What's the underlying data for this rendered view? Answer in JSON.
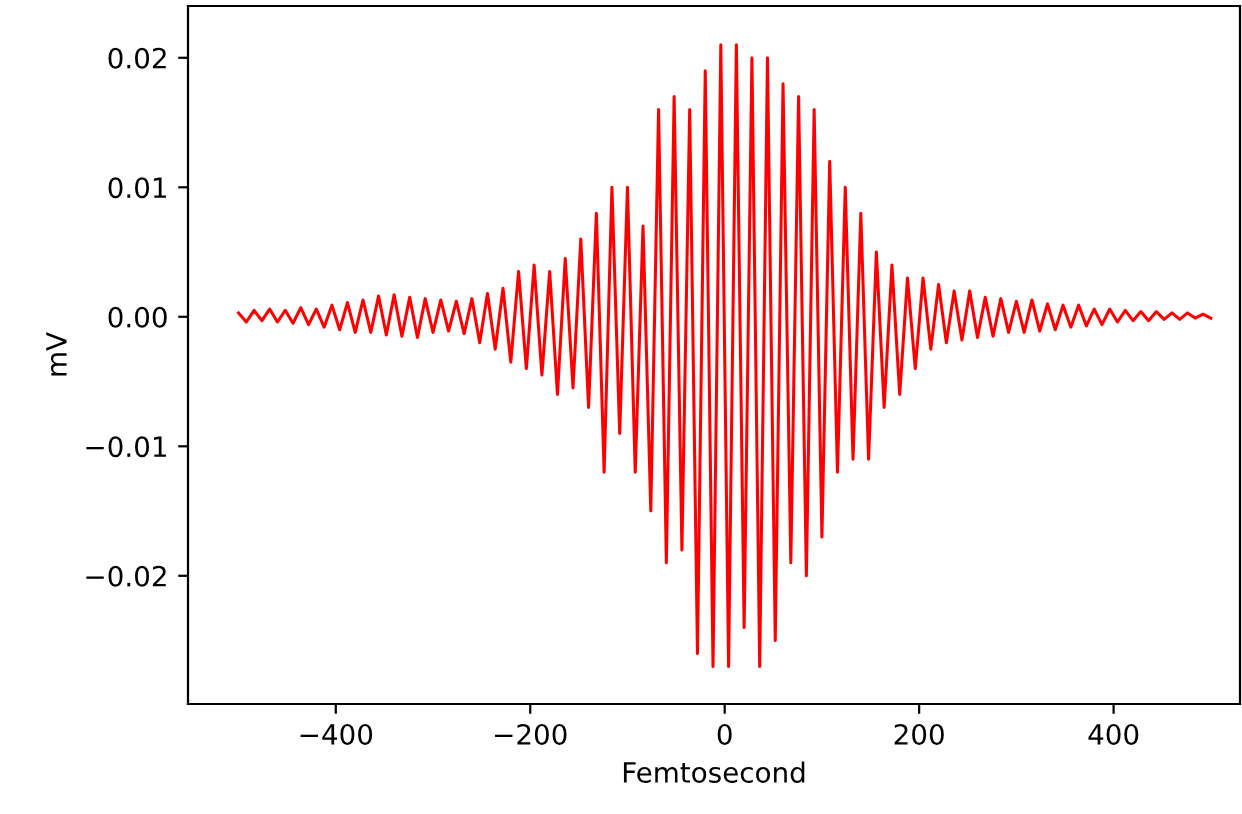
{
  "chart_data": {
    "type": "line",
    "xlabel": "Femtosecond",
    "ylabel": "mV",
    "xlim": [
      -552,
      530
    ],
    "ylim": [
      -0.0299,
      0.024
    ],
    "xticks": [
      {
        "value": -400,
        "label": "−400"
      },
      {
        "value": -200,
        "label": "−200"
      },
      0,
      200,
      400
    ],
    "yticks": [
      {
        "value": -0.02,
        "label": "−0.02"
      },
      {
        "value": -0.01,
        "label": "−0.01"
      },
      {
        "value": 0,
        "label": "0.00"
      },
      {
        "value": 0.01,
        "label": "0.01"
      },
      {
        "value": 0.02,
        "label": "0.02"
      }
    ],
    "line_style": "solid",
    "series": [
      {
        "color": "#ff0000",
        "x": [
          -500,
          -492,
          -484,
          -476,
          -468,
          -460,
          -452,
          -444,
          -436,
          -428,
          -420,
          -412,
          -404,
          -396,
          -388,
          -380,
          -372,
          -364,
          -356,
          -348,
          -340,
          -332,
          -324,
          -316,
          -308,
          -300,
          -292,
          -284,
          -276,
          -268,
          -260,
          -252,
          -244,
          -236,
          -228,
          -220,
          -212,
          -204,
          -196,
          -188,
          -180,
          -172,
          -164,
          -156,
          -148,
          -140,
          -132,
          -124,
          -116,
          -108,
          -100,
          -92,
          -84,
          -76,
          -68,
          -60,
          -52,
          -44,
          -36,
          -28,
          -20,
          -12,
          -4,
          4,
          12,
          20,
          28,
          36,
          44,
          52,
          60,
          68,
          76,
          84,
          92,
          100,
          108,
          116,
          124,
          132,
          140,
          148,
          156,
          164,
          172,
          180,
          188,
          196,
          204,
          212,
          220,
          228,
          236,
          244,
          252,
          260,
          268,
          276,
          284,
          292,
          300,
          308,
          316,
          324,
          332,
          340,
          348,
          356,
          364,
          372,
          380,
          388,
          396,
          404,
          412,
          420,
          428,
          436,
          444,
          452,
          460,
          468,
          476,
          484,
          492,
          500
        ],
        "values": [
          0.0003,
          -0.0004,
          0.0005,
          -0.0003,
          0.0006,
          -0.0004,
          0.0005,
          -0.0005,
          0.0007,
          -0.0006,
          0.0006,
          -0.0008,
          0.0009,
          -0.001,
          0.0011,
          -0.0012,
          0.0013,
          -0.0012,
          0.0016,
          -0.0014,
          0.0017,
          -0.0015,
          0.0015,
          -0.0016,
          0.0014,
          -0.0012,
          0.0013,
          -0.0011,
          0.0012,
          -0.0013,
          0.0014,
          -0.002,
          0.0018,
          -0.0025,
          0.0022,
          -0.0035,
          0.0035,
          -0.004,
          0.004,
          -0.0045,
          0.0035,
          -0.006,
          0.0045,
          -0.0055,
          0.006,
          -0.007,
          0.008,
          -0.012,
          0.01,
          -0.009,
          0.01,
          -0.012,
          0.007,
          -0.015,
          0.016,
          -0.019,
          0.017,
          -0.018,
          0.016,
          -0.026,
          0.019,
          -0.027,
          0.021,
          -0.027,
          0.021,
          -0.024,
          0.02,
          -0.027,
          0.02,
          -0.025,
          0.018,
          -0.019,
          0.017,
          -0.02,
          0.016,
          -0.017,
          0.012,
          -0.012,
          0.01,
          -0.011,
          0.008,
          -0.011,
          0.005,
          -0.007,
          0.004,
          -0.006,
          0.003,
          -0.004,
          0.003,
          -0.0025,
          0.0025,
          -0.002,
          0.002,
          -0.0018,
          0.002,
          -0.0016,
          0.0015,
          -0.0015,
          0.0014,
          -0.0012,
          0.0012,
          -0.0012,
          0.0013,
          -0.0011,
          0.001,
          -0.001,
          0.0009,
          -0.0008,
          0.0009,
          -0.0007,
          0.0006,
          -0.0006,
          0.0006,
          -0.0004,
          0.0005,
          -0.0003,
          0.0004,
          -0.0003,
          0.0004,
          -0.0002,
          0.0003,
          -0.0002,
          0.0003,
          -0.0001,
          0.0002,
          -0.0001
        ]
      }
    ]
  }
}
